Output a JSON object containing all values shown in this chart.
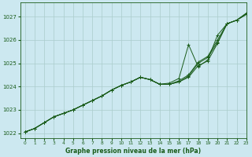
{
  "title": "Graphe pression niveau de la mer (hPa)",
  "bg_color": "#cce8f0",
  "grid_color": "#aacccc",
  "line_color": "#1a5c1a",
  "xlim": [
    -0.5,
    23
  ],
  "ylim": [
    1021.8,
    1027.6
  ],
  "yticks": [
    1022,
    1023,
    1024,
    1025,
    1026,
    1027
  ],
  "xticks": [
    0,
    1,
    2,
    3,
    4,
    5,
    6,
    7,
    8,
    9,
    10,
    11,
    12,
    13,
    14,
    15,
    16,
    17,
    18,
    19,
    20,
    21,
    22,
    23
  ],
  "series": [
    [
      1022.05,
      1022.2,
      1022.45,
      1022.7,
      1022.85,
      1023.0,
      1023.2,
      1023.4,
      1023.6,
      1023.85,
      1024.05,
      1024.2,
      1024.4,
      1024.3,
      1024.1,
      1024.1,
      1024.2,
      1024.4,
      1024.9,
      1025.1,
      1025.85,
      1026.7,
      1026.85,
      1027.1
    ],
    [
      1022.05,
      1022.2,
      1022.45,
      1022.7,
      1022.85,
      1023.0,
      1023.2,
      1023.4,
      1023.6,
      1023.85,
      1024.05,
      1024.2,
      1024.4,
      1024.3,
      1024.1,
      1024.15,
      1024.35,
      1025.8,
      1024.85,
      1025.15,
      1026.2,
      1026.7,
      1026.85,
      1027.15
    ],
    [
      1022.05,
      1022.2,
      1022.45,
      1022.7,
      1022.85,
      1023.0,
      1023.2,
      1023.4,
      1023.6,
      1023.85,
      1024.05,
      1024.2,
      1024.4,
      1024.3,
      1024.1,
      1024.1,
      1024.25,
      1024.5,
      1025.05,
      1025.3,
      1026.0,
      1026.7,
      1026.85,
      1027.15
    ],
    [
      1022.05,
      1022.2,
      1022.45,
      1022.7,
      1022.85,
      1023.0,
      1023.2,
      1023.4,
      1023.6,
      1023.85,
      1024.05,
      1024.2,
      1024.4,
      1024.3,
      1024.1,
      1024.1,
      1024.2,
      1024.45,
      1025.0,
      1025.25,
      1025.9,
      1026.7,
      1026.85,
      1027.1
    ]
  ]
}
